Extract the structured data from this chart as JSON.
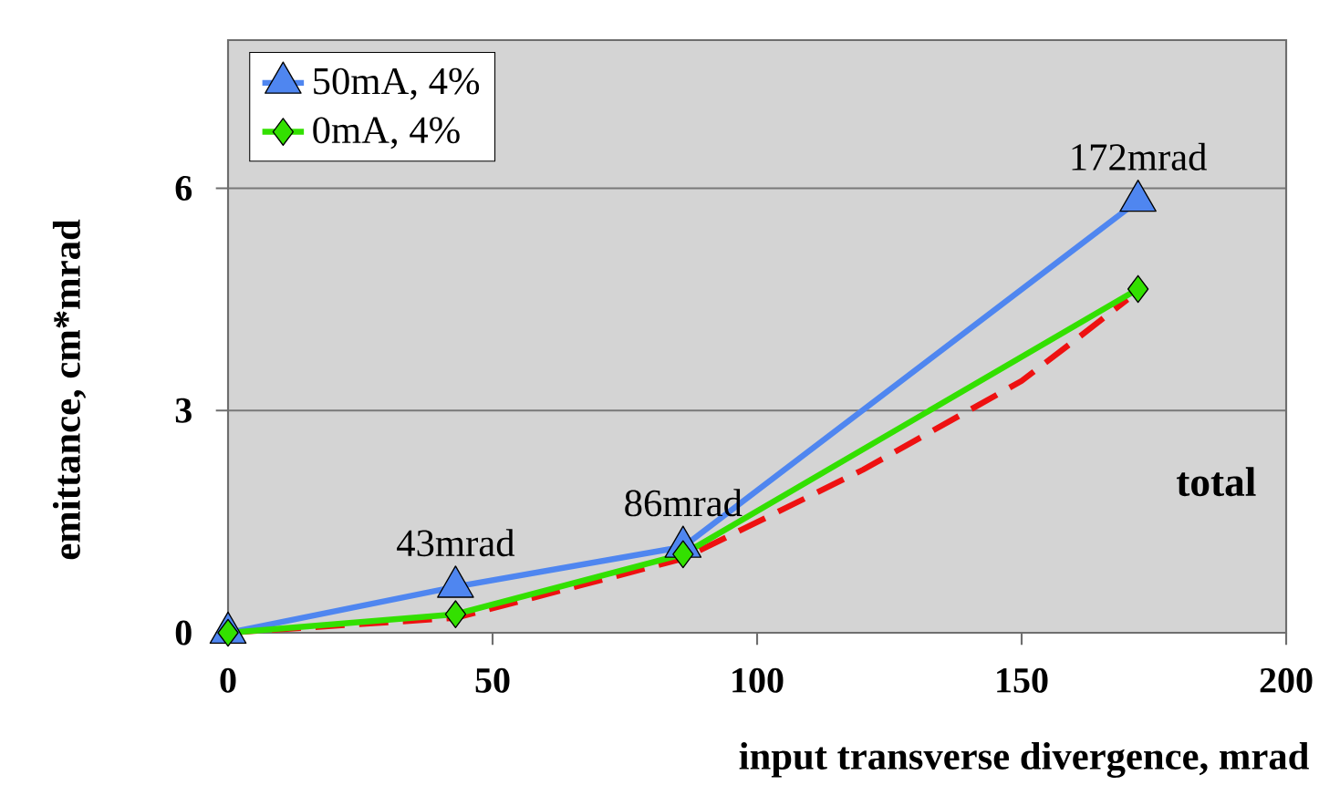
{
  "chart_data": {
    "type": "line",
    "xlabel": "input transverse divergence, mrad",
    "ylabel": "emittance, cm*mrad",
    "xlim": [
      0,
      200
    ],
    "xticks": [
      0,
      50,
      100,
      150,
      200
    ],
    "ylim": [
      0,
      8
    ],
    "yticks": [
      0,
      3,
      6
    ],
    "grid": "y",
    "legend": "top left",
    "series": [
      {
        "name": "50mA, 4%",
        "color": "#4f86f0",
        "marker": "triangle",
        "x": [
          0,
          43,
          86,
          172
        ],
        "values": [
          0,
          0.62,
          1.16,
          5.83
        ]
      },
      {
        "name": "0mA, 4%",
        "color": "#33e000",
        "marker": "diamond",
        "x": [
          0,
          43,
          86,
          172
        ],
        "values": [
          0,
          0.25,
          1.06,
          4.64
        ]
      },
      {
        "color": "#ee1111",
        "marker": "none",
        "line_style": "dashed",
        "x": [
          0,
          43,
          86,
          120,
          150,
          161,
          170
        ],
        "values": [
          0,
          0.2,
          1.0,
          2.2,
          3.4,
          4.0,
          4.5
        ]
      }
    ],
    "annotations": [
      {
        "text": "43mrad",
        "x": 43,
        "y": 0.62
      },
      {
        "text": "86mrad",
        "x": 86,
        "y": 1.16
      },
      {
        "text": "172mrad",
        "x": 172,
        "y": 5.83
      },
      "total"
    ]
  }
}
